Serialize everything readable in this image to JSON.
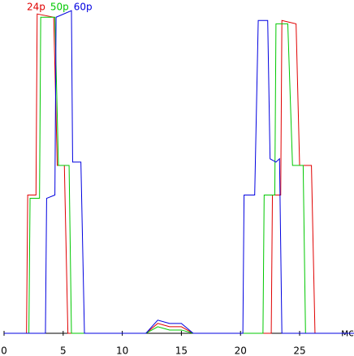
{
  "chart_data": {
    "type": "line",
    "x_label": "мс",
    "xlim": [
      0,
      29.6
    ],
    "xticks": [
      0,
      5,
      10,
      15,
      20,
      25
    ],
    "ylim": [
      0,
      100
    ],
    "series": [
      {
        "name": "24p",
        "color": "#e00000",
        "x": [
          0,
          1.9,
          2.0,
          2.7,
          2.8,
          4.2,
          4.5,
          5.1,
          5.4,
          12,
          13,
          14,
          15,
          16,
          22.6,
          22.7,
          23.4,
          23.5,
          24.7,
          25.0,
          26.0,
          26.3,
          29.6
        ],
        "values": [
          0,
          0,
          42,
          42,
          97,
          96,
          51,
          51,
          0,
          0,
          3,
          2,
          2,
          0,
          0,
          42,
          42,
          95,
          94,
          51,
          51,
          0,
          0
        ]
      },
      {
        "name": "50p",
        "color": "#00c800",
        "x": [
          0,
          2.1,
          2.2,
          3.0,
          3.1,
          4.3,
          4.6,
          5.5,
          5.7,
          12,
          13,
          14,
          15,
          16,
          21.9,
          22.0,
          22.9,
          23.0,
          24.0,
          24.4,
          25.3,
          25.5,
          29.6
        ],
        "values": [
          0,
          0,
          41,
          41,
          96,
          96,
          51,
          51,
          0,
          0,
          2,
          1,
          1,
          0,
          0,
          42,
          42,
          94,
          94,
          51,
          51,
          0,
          0
        ]
      },
      {
        "name": "60p",
        "color": "#0000e0",
        "x": [
          0,
          3.5,
          3.6,
          4.3,
          4.4,
          5.7,
          5.8,
          6.5,
          6.8,
          12,
          13,
          14,
          15,
          16,
          20.2,
          20.3,
          21.2,
          21.5,
          22.3,
          22.5,
          23.0,
          23.3,
          23.5,
          29.6
        ],
        "values": [
          0,
          0,
          41,
          42,
          96,
          98,
          52,
          52,
          0,
          0,
          4,
          3,
          3,
          0,
          0,
          42,
          42,
          95,
          95,
          53,
          52,
          53,
          0,
          0
        ]
      }
    ]
  }
}
